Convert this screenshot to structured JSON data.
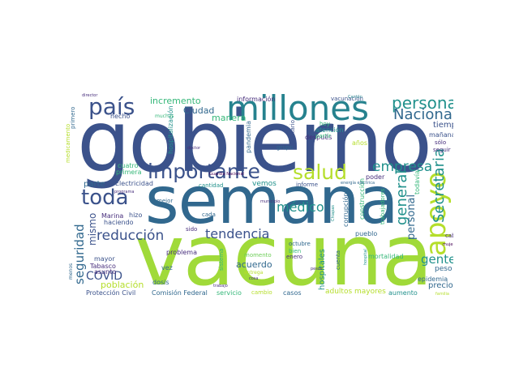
{
  "colors": {
    "navy": "#3b528b",
    "indigo": "#472e7c",
    "purple": "#440154",
    "blue": "#31688e",
    "teal": "#21918c",
    "cyan": "#26828e",
    "green": "#35b779",
    "lime": "#6ece58",
    "yellow": "#b5de2b",
    "gold": "#fde725"
  },
  "words": {
    "vacuna": "vacuna",
    "gobierno": "gobierno",
    "semana": "semana",
    "millones": "millones",
    "apoyo": "apoyo",
    "pais": "país",
    "importante": "importante",
    "salud": "salud",
    "toda": "toda",
    "persona": "persona",
    "nacional": "Nacional",
    "secretaria": "Secretaria",
    "general": "general",
    "empresa": "empresa",
    "reduccion": "reducción",
    "tendencia": "tendencia",
    "medico": "médico",
    "seguridad": "seguridad",
    "covid": "COVID",
    "gente": "gente",
    "personal": "personal",
    "mismo": "mismo",
    "incremento": "incremento",
    "ciudad": "Ciudad",
    "manera": "manera",
    "informacion": "información",
    "vacunacion": "vacunación",
    "tiempo": "tiempo",
    "manana": "mañana",
    "solo": "sólo",
    "parte": "parte",
    "electricidad": "Electricidad",
    "cantidad": "cantidad",
    "vemos": "vemos",
    "informe": "informe",
    "acuerdo": "acuerdo",
    "momento": "momento",
    "hospitales": "hospitales",
    "adultos_mayores": "adultos mayores",
    "mortalidad": "mortalidad",
    "epidemia": "epidemia",
    "precio": "precio",
    "peso": "peso",
    "cabo": "cabo",
    "poblacion": "población",
    "dosis": "dosis",
    "proteccion_civil": "Protección Civil",
    "comision_federal": "Comisión Federal",
    "servicio": "servicio",
    "cambio": "cambio",
    "casos": "casos",
    "aumento": "aumento",
    "problema": "problema",
    "tabasco": "Tabasco",
    "mayor": "mayor",
    "asunto": "asunto",
    "vez": "vez",
    "marina": "Marina",
    "haciendo": "haciendo",
    "hizo": "hizo",
    "cada": "cada",
    "sido": "sido",
    "mejor": "mejor",
    "primera": "primera",
    "cuatro": "cuatro",
    "hecho": "hecho",
    "muchas": "muchas",
    "primero": "primero",
    "director": "director",
    "hospitalizacion": "hospitalización",
    "pandemia": "pandemia",
    "grupo": "grupo",
    "despues": "después",
    "atencion": "atención",
    "partir": "partir",
    "hoy": "hoy",
    "octubre": "octubre",
    "enero": "enero",
    "entrega": "entrega",
    "bien": "bien",
    "cuenta": "cuenta",
    "pueblo": "pueblo",
    "corrupcion": "corrupción",
    "construccion": "construcción",
    "trabajadores": "trabajadores",
    "todavia": "todavía",
    "poder": "poder",
    "seguir": "seguir",
    "anos": "años",
    "secretario": "secretario",
    "sistema": "sistema",
    "guardia_nacional": "Guardia Nacional",
    "energia_electrica": "energía eléctrica",
    "municipio": "municipio",
    "programa": "programa",
    "medicamento": "medicamento",
    "menos": "menos",
    "doctor": "doctor",
    "mujeres": "mujeres",
    "familia": "familia",
    "trabajo": "trabajo",
    "cosa": "cosa",
    "pesos": "pesos",
    "canton": "Cantón",
    "chiapas": "Chiapas",
    "hospital": "hospital"
  }
}
